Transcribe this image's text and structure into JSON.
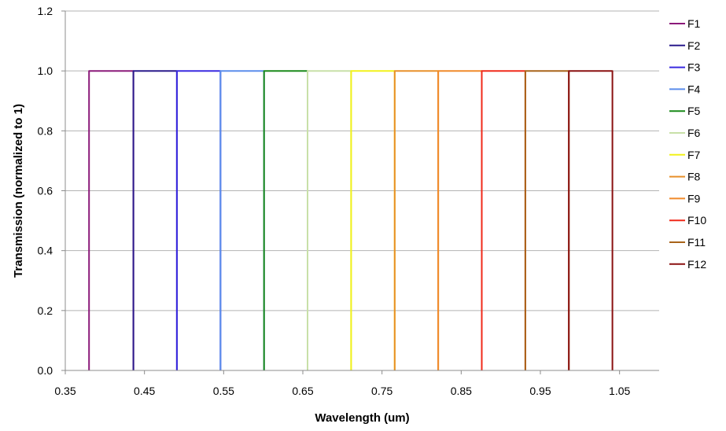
{
  "chart_data": {
    "type": "line",
    "title": "",
    "xlabel": "Wavelength (um)",
    "ylabel": "Transmission (normalized to 1)",
    "xlim": [
      0.35,
      1.1
    ],
    "ylim": [
      0,
      1.2
    ],
    "xticks": [
      "0.35",
      "0.45",
      "0.55",
      "0.65",
      "0.75",
      "0.85",
      "0.95",
      "1.05"
    ],
    "yticks": [
      "0.0",
      "0.2",
      "0.4",
      "0.6",
      "0.8",
      "1.0",
      "1.2"
    ],
    "xtick_values": [
      0.35,
      0.45,
      0.55,
      0.65,
      0.75,
      0.85,
      0.95,
      1.05
    ],
    "ytick_values": [
      0,
      0.2,
      0.4,
      0.6,
      0.8,
      1.0,
      1.2
    ],
    "grid": "horizontal",
    "legend_position": "right",
    "series": [
      {
        "name": "F1",
        "color": "#8B1A7A",
        "x": [
          0.38,
          0.38,
          0.436,
          0.436
        ],
        "y": [
          0,
          1.0,
          1.0,
          0
        ]
      },
      {
        "name": "F2",
        "color": "#2A1A8C",
        "x": [
          0.436,
          0.436,
          0.491,
          0.491
        ],
        "y": [
          0,
          1.0,
          1.0,
          0
        ]
      },
      {
        "name": "F3",
        "color": "#3A2AE0",
        "x": [
          0.491,
          0.491,
          0.546,
          0.546
        ],
        "y": [
          0,
          1.0,
          1.0,
          0
        ]
      },
      {
        "name": "F4",
        "color": "#5B8DEB",
        "x": [
          0.546,
          0.546,
          0.601,
          0.601
        ],
        "y": [
          0,
          1.0,
          1.0,
          0
        ]
      },
      {
        "name": "F5",
        "color": "#1A8A1A",
        "x": [
          0.601,
          0.601,
          0.656,
          0.656
        ],
        "y": [
          0,
          1.0,
          1.0,
          0
        ]
      },
      {
        "name": "F6",
        "color": "#C8E0A8",
        "x": [
          0.656,
          0.656,
          0.711,
          0.711
        ],
        "y": [
          0,
          1.0,
          1.0,
          0
        ]
      },
      {
        "name": "F7",
        "color": "#F2F21A",
        "x": [
          0.711,
          0.711,
          0.766,
          0.766
        ],
        "y": [
          0,
          1.0,
          1.0,
          0
        ]
      },
      {
        "name": "F8",
        "color": "#E8902A",
        "x": [
          0.766,
          0.766,
          0.821,
          0.821
        ],
        "y": [
          0,
          1.0,
          1.0,
          0
        ]
      },
      {
        "name": "F9",
        "color": "#F08A2A",
        "x": [
          0.821,
          0.821,
          0.876,
          0.876
        ],
        "y": [
          0,
          1.0,
          1.0,
          0
        ]
      },
      {
        "name": "F10",
        "color": "#F02A1A",
        "x": [
          0.876,
          0.876,
          0.931,
          0.931
        ],
        "y": [
          0,
          1.0,
          1.0,
          0
        ]
      },
      {
        "name": "F11",
        "color": "#A8641A",
        "x": [
          0.931,
          0.931,
          0.986,
          0.986
        ],
        "y": [
          0,
          1.0,
          1.0,
          0
        ]
      },
      {
        "name": "F12",
        "color": "#8A1010",
        "x": [
          0.986,
          0.986,
          1.041,
          1.041
        ],
        "y": [
          0,
          1.0,
          1.0,
          0
        ]
      }
    ]
  }
}
